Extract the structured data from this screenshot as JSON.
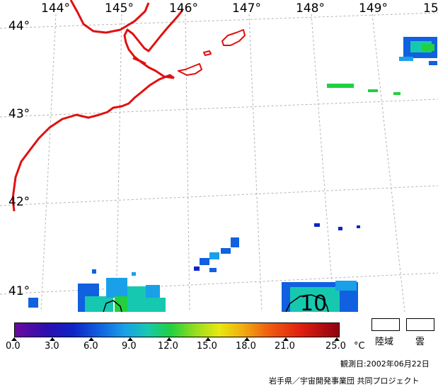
{
  "map": {
    "longitude_labels": [
      "144°",
      "145°",
      "146°",
      "147°",
      "148°",
      "149°",
      "15"
    ],
    "latitude_labels": [
      "44°",
      "43°",
      "42°",
      "41°"
    ],
    "contour_label": "10",
    "coastline_color": "#e01010",
    "grid_color": "#b4b4b4"
  },
  "colorbar": {
    "tick_labels": [
      "0.0",
      "3.0",
      "6.0",
      "9.0",
      "12.0",
      "15.0",
      "18.0",
      "21.0",
      "25.0"
    ],
    "unit": "°C"
  },
  "legend": {
    "land_label": "陸域",
    "cloud_label": "雲"
  },
  "observation_date": "観測日:2002年06月22日",
  "credit": "岩手県／宇宙開発事業団 共同プロジェクト"
}
